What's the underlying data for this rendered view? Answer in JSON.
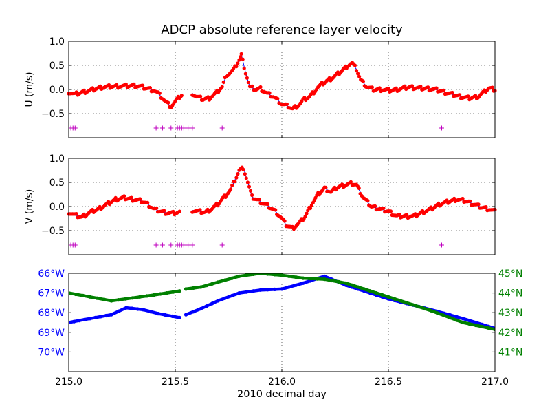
{
  "title": "ADCP absolute reference layer velocity",
  "xlabel": "2010 decimal day",
  "colors": {
    "points": "#ff0000",
    "line": "#0000ff",
    "flag": "#bf00bf",
    "lat": "#008000",
    "lon": "#0000ff"
  },
  "chart_data": [
    {
      "id": "u",
      "type": "scatter",
      "ylabel": "U (m/s)",
      "xlim": [
        215.0,
        217.0
      ],
      "ylim": [
        -1.0,
        1.0
      ],
      "yticks": [
        "1.0",
        "0.5",
        "0.0",
        "−0.5"
      ],
      "ytick_values": [
        1.0,
        0.5,
        0.0,
        -0.5
      ],
      "grid": true,
      "series": [
        {
          "values_xy": [
            [
              215.0,
              -0.05
            ],
            [
              215.03,
              -0.1
            ],
            [
              215.06,
              -0.06
            ],
            [
              215.1,
              -0.02
            ],
            [
              215.13,
              0.02
            ],
            [
              215.16,
              0.05
            ],
            [
              215.2,
              0.06
            ],
            [
              215.25,
              0.07
            ],
            [
              215.3,
              0.08
            ],
            [
              215.33,
              0.07
            ],
            [
              215.37,
              0.02
            ],
            [
              215.4,
              -0.02
            ],
            [
              215.42,
              -0.08
            ],
            [
              215.44,
              -0.18
            ],
            [
              215.46,
              -0.28
            ],
            [
              215.48,
              -0.35
            ],
            [
              215.5,
              -0.25
            ],
            [
              215.52,
              -0.15
            ],
            [
              215.53,
              -0.12
            ]
          ]
        },
        {
          "values_xy": [
            [
              215.58,
              -0.08
            ],
            [
              215.6,
              -0.15
            ],
            [
              215.63,
              -0.2
            ],
            [
              215.66,
              -0.18
            ],
            [
              215.69,
              -0.08
            ],
            [
              215.72,
              0.05
            ],
            [
              215.74,
              0.3
            ],
            [
              215.76,
              0.35
            ],
            [
              215.78,
              0.45
            ],
            [
              215.8,
              0.62
            ],
            [
              215.81,
              0.72
            ],
            [
              215.83,
              0.35
            ],
            [
              215.85,
              0.05
            ],
            [
              215.88,
              0.0
            ],
            [
              215.9,
              0.02
            ],
            [
              215.93,
              -0.08
            ],
            [
              215.96,
              -0.15
            ],
            [
              215.98,
              -0.22
            ],
            [
              216.0,
              -0.3
            ],
            [
              216.03,
              -0.35
            ],
            [
              216.05,
              -0.4
            ],
            [
              216.08,
              -0.32
            ],
            [
              216.1,
              -0.22
            ],
            [
              216.13,
              -0.15
            ],
            [
              216.15,
              -0.05
            ],
            [
              216.17,
              0.05
            ],
            [
              216.2,
              0.15
            ],
            [
              216.24,
              0.25
            ],
            [
              216.28,
              0.38
            ],
            [
              216.31,
              0.5
            ],
            [
              216.33,
              0.55
            ],
            [
              216.35,
              0.42
            ],
            [
              216.37,
              0.2
            ],
            [
              216.4,
              0.05
            ],
            [
              216.43,
              0.0
            ],
            [
              216.47,
              0.0
            ],
            [
              216.5,
              -0.02
            ],
            [
              216.53,
              -0.01
            ],
            [
              216.56,
              0.02
            ],
            [
              216.6,
              0.05
            ],
            [
              216.64,
              0.03
            ],
            [
              216.68,
              0.02
            ],
            [
              216.72,
              0.0
            ],
            [
              216.76,
              -0.05
            ],
            [
              216.8,
              -0.1
            ],
            [
              216.84,
              -0.15
            ],
            [
              216.88,
              -0.18
            ],
            [
              216.92,
              -0.15
            ],
            [
              216.95,
              -0.05
            ],
            [
              216.97,
              0.03
            ],
            [
              217.0,
              0.0
            ]
          ]
        }
      ],
      "flags_x": [
        215.01,
        215.02,
        215.03,
        215.41,
        215.44,
        215.48,
        215.51,
        215.52,
        215.53,
        215.54,
        215.55,
        215.56,
        215.58,
        215.72,
        216.75
      ]
    },
    {
      "id": "v",
      "type": "scatter",
      "ylabel": "V (m/s)",
      "xlim": [
        215.0,
        217.0
      ],
      "ylim": [
        -1.0,
        1.0
      ],
      "yticks": [
        "1.0",
        "0.5",
        "0.0",
        "−0.5"
      ],
      "ytick_values": [
        1.0,
        0.5,
        0.0,
        -0.5
      ],
      "grid": true,
      "series": [
        {
          "values_xy": [
            [
              215.0,
              -0.12
            ],
            [
              215.03,
              -0.18
            ],
            [
              215.06,
              -0.22
            ],
            [
              215.1,
              -0.12
            ],
            [
              215.14,
              -0.05
            ],
            [
              215.18,
              0.05
            ],
            [
              215.22,
              0.15
            ],
            [
              215.26,
              0.18
            ],
            [
              215.3,
              0.15
            ],
            [
              215.34,
              0.12
            ],
            [
              215.37,
              0.05
            ],
            [
              215.4,
              -0.05
            ],
            [
              215.43,
              -0.1
            ],
            [
              215.46,
              -0.13
            ],
            [
              215.49,
              -0.14
            ],
            [
              215.52,
              -0.12
            ]
          ]
        },
        {
          "values_xy": [
            [
              215.58,
              -0.08
            ],
            [
              215.61,
              -0.1
            ],
            [
              215.64,
              -0.12
            ],
            [
              215.67,
              -0.05
            ],
            [
              215.7,
              0.05
            ],
            [
              215.73,
              0.2
            ],
            [
              215.76,
              0.35
            ],
            [
              215.78,
              0.55
            ],
            [
              215.8,
              0.75
            ],
            [
              215.82,
              0.8
            ],
            [
              215.84,
              0.5
            ],
            [
              215.86,
              0.2
            ],
            [
              215.9,
              0.1
            ],
            [
              215.94,
              0.0
            ],
            [
              215.97,
              -0.1
            ],
            [
              216.0,
              -0.25
            ],
            [
              216.02,
              -0.38
            ],
            [
              216.05,
              -0.45
            ],
            [
              216.08,
              -0.35
            ],
            [
              216.11,
              -0.2
            ],
            [
              216.14,
              0.05
            ],
            [
              216.17,
              0.25
            ],
            [
              216.2,
              0.38
            ],
            [
              216.23,
              0.3
            ],
            [
              216.26,
              0.4
            ],
            [
              216.3,
              0.45
            ],
            [
              216.33,
              0.48
            ],
            [
              216.35,
              0.45
            ],
            [
              216.38,
              0.2
            ],
            [
              216.42,
              0.0
            ],
            [
              216.46,
              -0.05
            ],
            [
              216.5,
              -0.1
            ],
            [
              216.54,
              -0.2
            ],
            [
              216.58,
              -0.2
            ],
            [
              216.62,
              -0.2
            ],
            [
              216.66,
              -0.12
            ],
            [
              216.7,
              -0.05
            ],
            [
              216.74,
              0.05
            ],
            [
              216.78,
              0.1
            ],
            [
              216.82,
              0.15
            ],
            [
              216.86,
              0.12
            ],
            [
              216.9,
              0.05
            ],
            [
              216.94,
              -0.02
            ],
            [
              216.97,
              -0.05
            ],
            [
              217.0,
              -0.1
            ]
          ]
        }
      ],
      "flags_x": [
        215.01,
        215.02,
        215.03,
        215.41,
        215.44,
        215.48,
        215.51,
        215.52,
        215.53,
        215.54,
        215.55,
        215.56,
        215.58,
        215.72,
        216.75
      ]
    },
    {
      "id": "pos",
      "type": "line",
      "xlim": [
        215.0,
        217.0
      ],
      "xticks": [
        "215.0",
        "215.5",
        "216.0",
        "216.5",
        "217.0"
      ],
      "xtick_values": [
        215.0,
        215.5,
        216.0,
        216.5,
        217.0
      ],
      "left_axis": {
        "ylim": [
          71.0,
          66.0
        ],
        "yticks": [
          "66°W",
          "67°W",
          "68°W",
          "69°W",
          "70°W"
        ],
        "ytick_values": [
          66,
          67,
          68,
          69,
          70
        ]
      },
      "right_axis": {
        "ylim": [
          40.0,
          45.0
        ],
        "yticks": [
          "45°N",
          "44°N",
          "43°N",
          "42°N",
          "41°N"
        ],
        "ytick_values": [
          45,
          44,
          43,
          42,
          41
        ]
      },
      "series": [
        {
          "axis": "left",
          "values_xy": [
            [
              215.0,
              68.5
            ],
            [
              215.05,
              68.4
            ],
            [
              215.1,
              68.3
            ],
            [
              215.15,
              68.2
            ],
            [
              215.2,
              68.1
            ],
            [
              215.27,
              67.75
            ],
            [
              215.35,
              67.85
            ],
            [
              215.42,
              68.05
            ],
            [
              215.52,
              68.25
            ]
          ]
        },
        {
          "axis": "left",
          "values_xy": [
            [
              215.55,
              68.1
            ],
            [
              215.62,
              67.8
            ],
            [
              215.7,
              67.4
            ],
            [
              215.8,
              67.0
            ],
            [
              215.9,
              66.85
            ],
            [
              216.0,
              66.8
            ],
            [
              216.1,
              66.5
            ],
            [
              216.2,
              66.15
            ],
            [
              216.3,
              66.6
            ],
            [
              216.5,
              67.3
            ],
            [
              216.7,
              67.85
            ],
            [
              216.85,
              68.3
            ],
            [
              217.0,
              68.8
            ]
          ]
        },
        {
          "axis": "right",
          "values_xy": [
            [
              215.0,
              44.0
            ],
            [
              215.1,
              43.8
            ],
            [
              215.2,
              43.6
            ],
            [
              215.3,
              43.75
            ],
            [
              215.4,
              43.9
            ],
            [
              215.52,
              44.1
            ]
          ]
        },
        {
          "axis": "right",
          "values_xy": [
            [
              215.55,
              44.2
            ],
            [
              215.62,
              44.3
            ],
            [
              215.7,
              44.55
            ],
            [
              215.8,
              44.85
            ],
            [
              215.9,
              45.0
            ],
            [
              216.0,
              44.9
            ],
            [
              216.1,
              44.75
            ],
            [
              216.2,
              44.7
            ],
            [
              216.3,
              44.5
            ],
            [
              216.5,
              43.8
            ],
            [
              216.7,
              43.1
            ],
            [
              216.85,
              42.5
            ],
            [
              217.0,
              42.15
            ]
          ]
        }
      ]
    }
  ]
}
